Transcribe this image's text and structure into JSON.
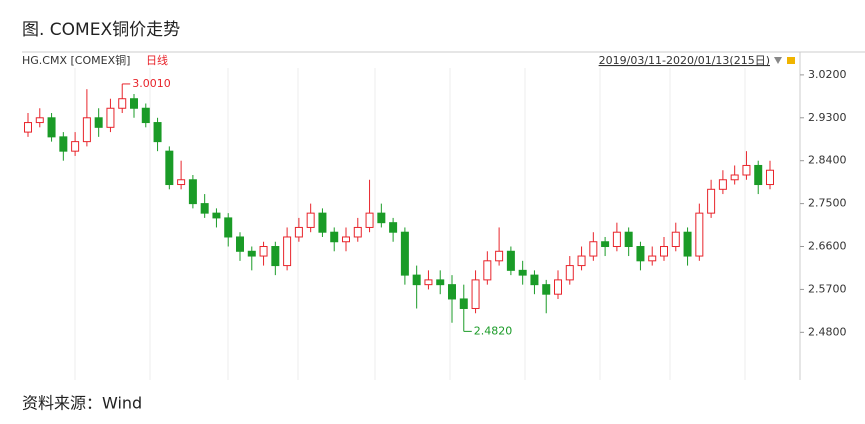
{
  "chart_data": {
    "type": "candlestick",
    "title": "图. COMEX铜价走势",
    "symbol": "HG.CMX [COMEX铜]",
    "period": "日线",
    "date_range": "2019/03/11-2020/01/13(215日)",
    "source": "资料来源：Wind",
    "up_color": "#e8242b",
    "down_color": "#1a9b27",
    "ylim": [
      2.38,
      3.068
    ],
    "yticks": [
      {
        "value": 2.48,
        "label": "2.4800"
      },
      {
        "value": 2.57,
        "label": "2.5700"
      },
      {
        "value": 2.66,
        "label": "2.6600"
      },
      {
        "value": 2.75,
        "label": "2.7500"
      },
      {
        "value": 2.84,
        "label": "2.8400"
      },
      {
        "value": 2.93,
        "label": "2.9300"
      },
      {
        "value": 3.02,
        "label": "3.0200"
      }
    ],
    "annotations": [
      {
        "value": 3.001,
        "label": "3.0010"
      },
      {
        "value": 2.482,
        "label": "2.4820"
      }
    ],
    "open": [
      2.9,
      2.92,
      2.93,
      2.89,
      2.86,
      2.88,
      2.93,
      2.91,
      2.95,
      2.97,
      2.95,
      2.92,
      2.86,
      2.79,
      2.8,
      2.75,
      2.73,
      2.72,
      2.68,
      2.65,
      2.64,
      2.66,
      2.62,
      2.68,
      2.7,
      2.73,
      2.69,
      2.67,
      2.68,
      2.7,
      2.73,
      2.71,
      2.69,
      2.6,
      2.58,
      2.59,
      2.58,
      2.55,
      2.53,
      2.59,
      2.63,
      2.65,
      2.61,
      2.6,
      2.58,
      2.56,
      2.59,
      2.62,
      2.64,
      2.67,
      2.66,
      2.69,
      2.66,
      2.63,
      2.64,
      2.66,
      2.69,
      2.64,
      2.73,
      2.78,
      2.8,
      2.81,
      2.83,
      2.79
    ],
    "high": [
      2.94,
      2.95,
      2.94,
      2.9,
      2.9,
      2.99,
      2.95,
      2.97,
      3.001,
      2.98,
      2.96,
      2.93,
      2.87,
      2.84,
      2.81,
      2.77,
      2.74,
      2.73,
      2.69,
      2.66,
      2.67,
      2.67,
      2.7,
      2.72,
      2.75,
      2.74,
      2.7,
      2.7,
      2.72,
      2.8,
      2.75,
      2.72,
      2.7,
      2.62,
      2.61,
      2.61,
      2.6,
      2.58,
      2.61,
      2.65,
      2.7,
      2.66,
      2.63,
      2.61,
      2.59,
      2.61,
      2.64,
      2.66,
      2.69,
      2.68,
      2.71,
      2.7,
      2.67,
      2.66,
      2.68,
      2.71,
      2.7,
      2.75,
      2.8,
      2.82,
      2.83,
      2.86,
      2.84,
      2.84
    ],
    "low": [
      2.89,
      2.91,
      2.88,
      2.84,
      2.85,
      2.87,
      2.89,
      2.9,
      2.94,
      2.93,
      2.91,
      2.86,
      2.78,
      2.78,
      2.74,
      2.72,
      2.7,
      2.66,
      2.63,
      2.61,
      2.62,
      2.6,
      2.61,
      2.67,
      2.69,
      2.68,
      2.65,
      2.65,
      2.67,
      2.69,
      2.7,
      2.67,
      2.58,
      2.53,
      2.57,
      2.56,
      2.5,
      2.482,
      2.52,
      2.58,
      2.62,
      2.6,
      2.58,
      2.56,
      2.52,
      2.55,
      2.58,
      2.61,
      2.63,
      2.64,
      2.65,
      2.64,
      2.61,
      2.62,
      2.63,
      2.65,
      2.62,
      2.63,
      2.72,
      2.77,
      2.79,
      2.8,
      2.77,
      2.78
    ],
    "close": [
      2.92,
      2.93,
      2.89,
      2.86,
      2.88,
      2.93,
      2.91,
      2.95,
      2.97,
      2.95,
      2.92,
      2.88,
      2.79,
      2.8,
      2.75,
      2.73,
      2.72,
      2.68,
      2.65,
      2.64,
      2.66,
      2.62,
      2.68,
      2.7,
      2.73,
      2.69,
      2.67,
      2.68,
      2.7,
      2.73,
      2.71,
      2.69,
      2.6,
      2.58,
      2.59,
      2.58,
      2.55,
      2.53,
      2.59,
      2.63,
      2.65,
      2.61,
      2.6,
      2.58,
      2.56,
      2.59,
      2.62,
      2.64,
      2.67,
      2.66,
      2.69,
      2.66,
      2.63,
      2.64,
      2.66,
      2.69,
      2.64,
      2.73,
      2.78,
      2.8,
      2.81,
      2.83,
      2.79,
      2.82
    ]
  }
}
